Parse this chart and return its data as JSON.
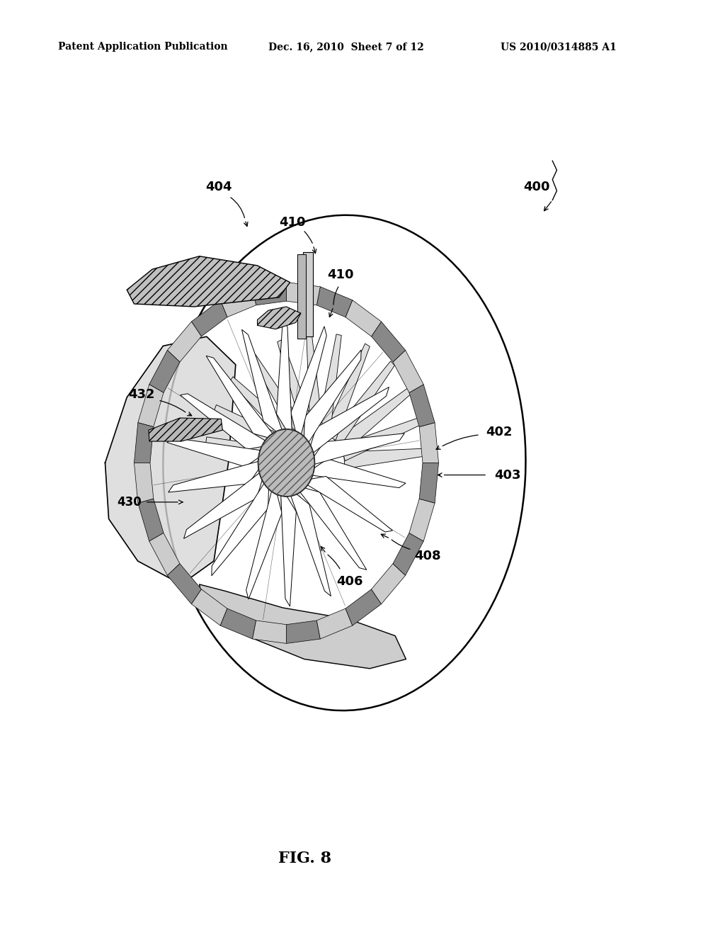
{
  "bg_color": "#ffffff",
  "header_left": "Patent Application Publication",
  "header_mid": "Dec. 16, 2010  Sheet 7 of 12",
  "header_right": "US 2010/0314885 A1",
  "fig_label": "FIG. 8",
  "label_fontsize": 13,
  "header_fontsize": 10,
  "fig_fontsize": 16
}
